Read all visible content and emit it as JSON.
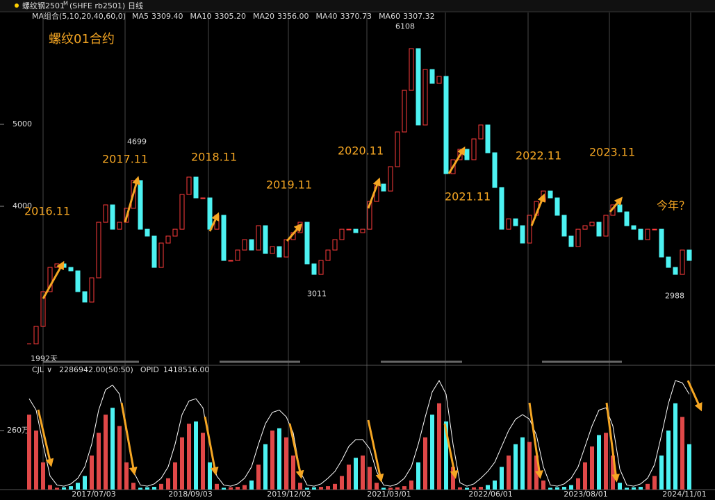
{
  "header": {
    "symbol": "螺纹钢2501",
    "suffix": "M",
    "code": "(SHFE rb2501)",
    "period": "日线"
  },
  "chart_data": [
    {
      "type": "candlestick",
      "title": "螺纹01合约",
      "ma_label": "MA组合(5,10,20,40,60,0)",
      "ma": [
        {
          "name": "MA5",
          "value": "3309.40",
          "color": "#ffffff"
        },
        {
          "name": "MA10",
          "value": "3305.20",
          "color": "#ffff00"
        },
        {
          "name": "MA20",
          "value": "3356.00",
          "color": "#ff00ff"
        },
        {
          "name": "MA40",
          "value": "3370.73",
          "color": "#00ff00"
        },
        {
          "name": "MA60",
          "value": "3307.32",
          "color": "#a0a0a0"
        }
      ],
      "values": [
        2322,
        2534,
        2958,
        3254,
        3297,
        3254,
        3212,
        2958,
        2831,
        3127,
        3805,
        4017,
        3720,
        3805,
        3975,
        4314,
        3720,
        3636,
        3254,
        3551,
        3636,
        3720,
        4144,
        4356,
        4102,
        4102,
        3720,
        3890,
        3339,
        3339,
        3466,
        3593,
        3466,
        3763,
        3424,
        3508,
        3381,
        3593,
        3678,
        3805,
        3297,
        3169,
        3339,
        3466,
        3593,
        3720,
        3720,
        3678,
        3720,
        4059,
        4271,
        4186,
        4483,
        4907,
        5415,
        5924,
        4992,
        5669,
        5500,
        5585,
        4398,
        4568,
        4695,
        4568,
        4822,
        4992,
        4653,
        4229,
        3720,
        3847,
        3763,
        3551,
        3890,
        4059,
        4186,
        4102,
        3890,
        3636,
        3508,
        3720,
        3763,
        3805,
        3636,
        3890,
        4017,
        3932,
        3763,
        3720,
        3593,
        3720,
        3720,
        3381,
        3254,
        3169,
        3466,
        3339
      ],
      "up_color": "#ff3c3c",
      "down_color": "#4df2f2",
      "ylim": [
        2085,
        6246
      ],
      "yticks": [
        4000,
        5000
      ],
      "price_labels": [
        4699,
        6108,
        3011,
        2988
      ],
      "days_label": "1992天",
      "annotations": [
        "2016.11",
        "2017.11",
        "2018.11",
        "2019.11",
        "2020.11",
        "2021.11",
        "2022.11",
        "2023.11",
        "今年？"
      ]
    },
    {
      "type": "volume",
      "series": [
        {
          "name": "CJL",
          "label": "2286942.00(50:50)",
          "color": "#4df2f2",
          "values": [
            330,
            260,
            120,
            20,
            8,
            10,
            15,
            30,
            60,
            150,
            250,
            330,
            360,
            280,
            120,
            30,
            8,
            10,
            12,
            25,
            50,
            120,
            230,
            290,
            300,
            250,
            120,
            25,
            8,
            10,
            12,
            20,
            40,
            110,
            200,
            260,
            270,
            230,
            150,
            30,
            8,
            10,
            12,
            15,
            25,
            60,
            110,
            140,
            150,
            100,
            30,
            8,
            8,
            10,
            15,
            40,
            120,
            230,
            330,
            380,
            300,
            100,
            10,
            8,
            10,
            12,
            20,
            40,
            100,
            150,
            200,
            230,
            210,
            150,
            40,
            8,
            10,
            12,
            20,
            50,
            120,
            190,
            240,
            250,
            150,
            30,
            8,
            10,
            12,
            25,
            60,
            150,
            260,
            380,
            320,
            200
          ]
        },
        {
          "name": "OPID",
          "label": "1418516.00",
          "color": "#ffffff",
          "values": [
            400,
            350,
            200,
            60,
            20,
            15,
            25,
            50,
            100,
            200,
            350,
            440,
            460,
            420,
            250,
            80,
            20,
            15,
            25,
            50,
            100,
            200,
            330,
            390,
            400,
            360,
            200,
            60,
            20,
            15,
            25,
            50,
            100,
            200,
            290,
            340,
            350,
            320,
            250,
            80,
            20,
            15,
            25,
            50,
            80,
            130,
            190,
            220,
            220,
            180,
            80,
            20,
            15,
            25,
            50,
            100,
            200,
            320,
            430,
            480,
            420,
            200,
            30,
            15,
            25,
            50,
            80,
            120,
            190,
            260,
            310,
            330,
            310,
            240,
            100,
            20,
            15,
            25,
            50,
            100,
            190,
            280,
            350,
            360,
            280,
            90,
            20,
            15,
            25,
            50,
            110,
            240,
            380,
            480,
            470,
            420
          ]
        }
      ],
      "ylim": [
        0,
        535
      ],
      "yticks": [
        {
          "value": 260,
          "label": "260万"
        }
      ],
      "xticks": [
        {
          "value": 9.3,
          "label": "2017/07/03"
        },
        {
          "value": 23.2,
          "label": "2018/09/03"
        },
        {
          "value": 37.4,
          "label": "2019/12/02"
        },
        {
          "value": 51.8,
          "label": "2021/03/01"
        },
        {
          "value": 66.4,
          "label": "2022/06/01"
        },
        {
          "value": 80.1,
          "label": "2023/08/01"
        },
        {
          "value": 94.3,
          "label": "2024/11/01"
        }
      ]
    }
  ]
}
